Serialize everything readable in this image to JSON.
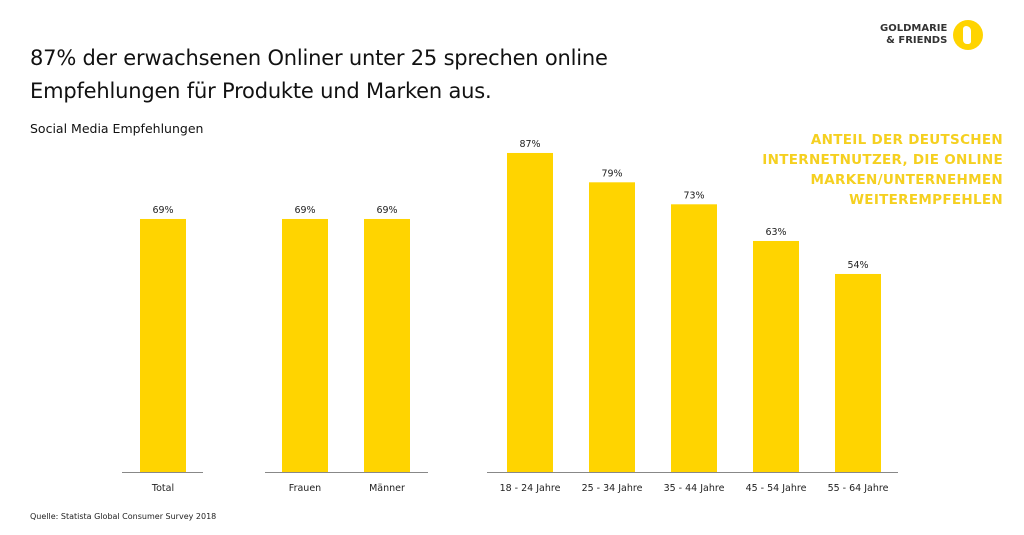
{
  "header": {
    "title_line1": "87% der erwachsenen Onliner unter 25 sprechen online",
    "title_line2": "Empfehlungen für Produkte und Marken aus.",
    "subtitle": "Social Media Empfehlungen"
  },
  "logo": {
    "line1": "GOLDMARIE",
    "line2": "& FRIENDS"
  },
  "note": [
    "ANTEIL DER DEUTSCHEN",
    "INTERNETNUTZER, DIE ONLINE",
    "MARKEN/UNTERNEHMEN",
    "WEITEREMPFEHLEN"
  ],
  "source": "Quelle: Statista Global Consumer Survey 2018",
  "chart_data": {
    "type": "bar",
    "bar_color": "#FFD400",
    "ylim": [
      0,
      100
    ],
    "grid": false,
    "unit": "%",
    "groups": [
      {
        "categories": [
          "Total"
        ],
        "values": [
          69
        ]
      },
      {
        "categories": [
          "Frauen",
          "Männer"
        ],
        "values": [
          69,
          69
        ]
      },
      {
        "categories": [
          "18 - 24 Jahre",
          "25 - 34 Jahre",
          "35 - 44 Jahre",
          "45 - 54 Jahre",
          "55 - 64 Jahre"
        ],
        "values": [
          87,
          79,
          73,
          63,
          54
        ]
      }
    ]
  }
}
